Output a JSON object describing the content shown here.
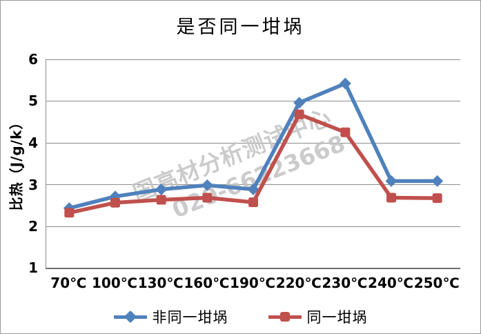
{
  "chart_data": {
    "type": "line",
    "title": "是否同一坩埚",
    "categories": [
      "70℃",
      "100℃",
      "130℃",
      "160℃",
      "190℃",
      "220℃",
      "230℃",
      "240℃",
      "250℃"
    ],
    "series": [
      {
        "name": "非同一坩埚",
        "color": "#4F81BD",
        "marker": "diamond",
        "values": [
          2.43,
          2.71,
          2.88,
          2.98,
          2.88,
          4.96,
          5.42,
          3.08,
          3.08
        ]
      },
      {
        "name": "同一坩埚",
        "color": "#C0504D",
        "marker": "square",
        "values": [
          2.32,
          2.56,
          2.63,
          2.68,
          2.57,
          4.68,
          4.25,
          2.68,
          2.67
        ]
      }
    ],
    "xlabel": "",
    "ylabel": "比热（J/g/k）",
    "ylim": [
      1,
      6
    ],
    "ytick_labels": [
      "6",
      "5",
      "4",
      "3",
      "2",
      "1"
    ],
    "grid": true,
    "legend_position": "bottom"
  },
  "watermark": {
    "line1": "国高材分析测试中心",
    "line2": "020-66223668"
  },
  "colors": {
    "gridline": "#8c8c8c",
    "watermark": "#c2c2c2"
  }
}
